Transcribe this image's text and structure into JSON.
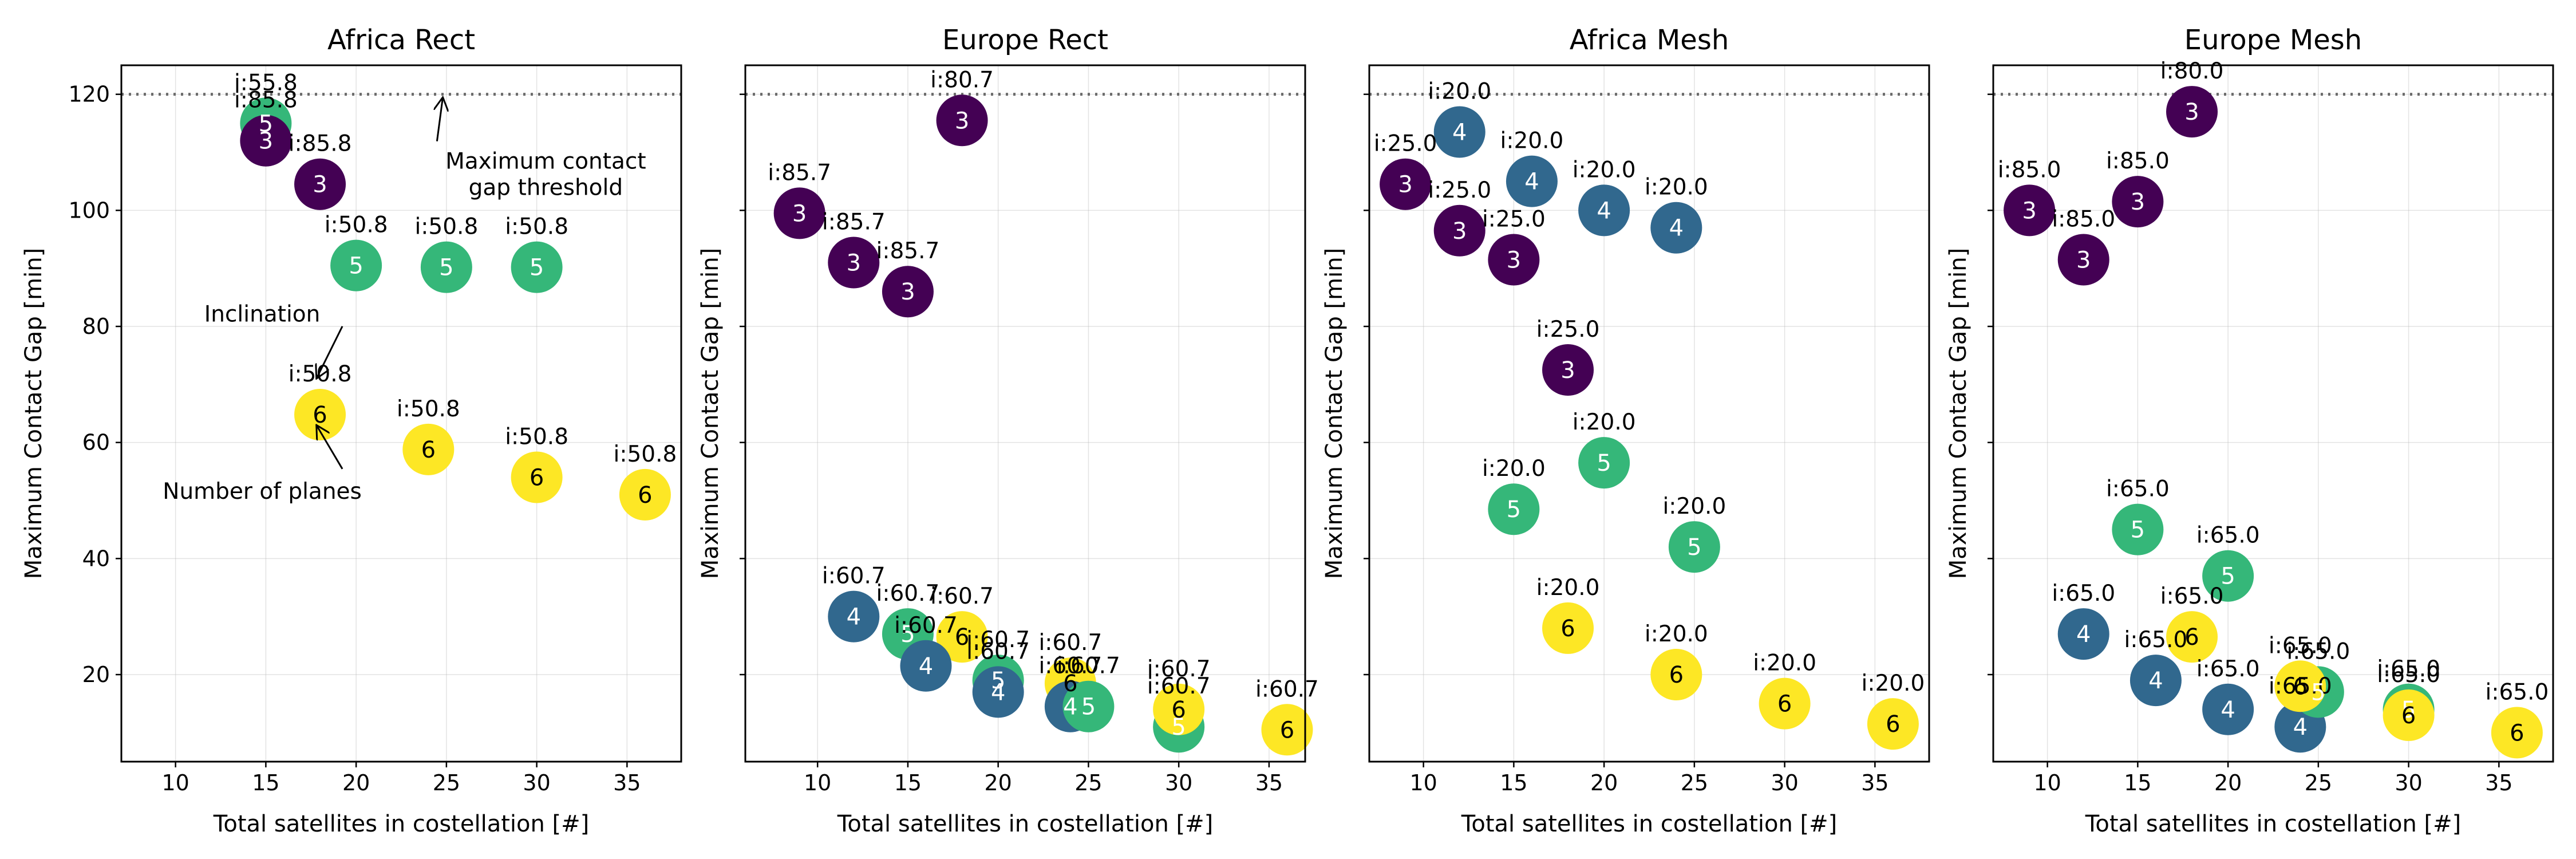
{
  "chart_data": [
    {
      "type": "scatter",
      "title": "Africa Rect",
      "xlabel": "Total satellites in costellation [#]",
      "ylabel": "Maximum Contact Gap [min]",
      "xlim": [
        7,
        38
      ],
      "ylim": [
        5,
        125
      ],
      "xticks": [
        10,
        15,
        20,
        25,
        30,
        35
      ],
      "yticks": [
        20,
        40,
        60,
        80,
        100,
        120
      ],
      "show_yticklabels": true,
      "grid": true,
      "threshold": 120,
      "points": [
        {
          "x": 15,
          "y": 115,
          "planes": 5,
          "label": "i:55.8"
        },
        {
          "x": 15,
          "y": 112,
          "planes": 3,
          "label": "i:85.8"
        },
        {
          "x": 18,
          "y": 104.5,
          "planes": 3,
          "label": "i:85.8"
        },
        {
          "x": 20,
          "y": 90.5,
          "planes": 5,
          "label": "i:50.8"
        },
        {
          "x": 25,
          "y": 90.2,
          "planes": 5,
          "label": "i:50.8"
        },
        {
          "x": 30,
          "y": 90.2,
          "planes": 5,
          "label": "i:50.8"
        },
        {
          "x": 18,
          "y": 64.8,
          "planes": 6,
          "label": "i:50.8"
        },
        {
          "x": 24,
          "y": 58.8,
          "planes": 6,
          "label": "i:50.8"
        },
        {
          "x": 30,
          "y": 54,
          "planes": 6,
          "label": "i:50.8"
        },
        {
          "x": 36,
          "y": 51,
          "planes": 6,
          "label": "i:50.8"
        }
      ],
      "annotations": [
        {
          "text": "Maximum contact\ngap threshold",
          "text_x": 30.5,
          "text_y": 105,
          "target_x": 24.8,
          "target_y": 119.5
        },
        {
          "text": "Inclination",
          "text_x": 14.8,
          "text_y": 82,
          "target_x": 17.8,
          "target_y": 71
        },
        {
          "text": "Number of planes",
          "text_x": 14.8,
          "text_y": 51.5,
          "target_x": 17.8,
          "target_y": 63
        }
      ]
    },
    {
      "type": "scatter",
      "title": "Europe Rect",
      "xlabel": "Total satellites in costellation [#]",
      "ylabel": "Maximum Contact Gap [min]",
      "xlim": [
        6,
        37
      ],
      "ylim": [
        5,
        125
      ],
      "xticks": [
        10,
        15,
        20,
        25,
        30,
        35
      ],
      "yticks": [
        20,
        40,
        60,
        80,
        100,
        120
      ],
      "show_yticklabels": false,
      "grid": true,
      "threshold": 120,
      "points": [
        {
          "x": 18,
          "y": 115.5,
          "planes": 3,
          "label": "i:80.7"
        },
        {
          "x": 9,
          "y": 99.5,
          "planes": 3,
          "label": "i:85.7"
        },
        {
          "x": 12,
          "y": 91,
          "planes": 3,
          "label": "i:85.7"
        },
        {
          "x": 15,
          "y": 86,
          "planes": 3,
          "label": "i:85.7"
        },
        {
          "x": 12,
          "y": 30,
          "planes": 4,
          "label": "i:60.7"
        },
        {
          "x": 15,
          "y": 27,
          "planes": 5,
          "label": "i:60.7"
        },
        {
          "x": 18,
          "y": 26.5,
          "planes": 6,
          "label": "i:60.7"
        },
        {
          "x": 16,
          "y": 21.5,
          "planes": 4,
          "label": "i:60.7"
        },
        {
          "x": 20,
          "y": 19,
          "planes": 5,
          "label": "i:60.7"
        },
        {
          "x": 20,
          "y": 17,
          "planes": 4,
          "label": "i:60.7"
        },
        {
          "x": 24,
          "y": 18.5,
          "planes": 6,
          "label": "i:60.7"
        },
        {
          "x": 24,
          "y": 14.5,
          "planes": 4,
          "label": "i:60.7"
        },
        {
          "x": 25,
          "y": 14.5,
          "planes": 5,
          "label": "i:60.7"
        },
        {
          "x": 30,
          "y": 11,
          "planes": 5,
          "label": "i:60.7"
        },
        {
          "x": 30,
          "y": 14,
          "planes": 6,
          "label": "i:60.7"
        },
        {
          "x": 36,
          "y": 10.5,
          "planes": 6,
          "label": "i:60.7"
        }
      ]
    },
    {
      "type": "scatter",
      "title": "Africa Mesh",
      "xlabel": "Total satellites in costellation [#]",
      "ylabel": "Maximum Contact Gap [min]",
      "xlim": [
        7,
        38
      ],
      "ylim": [
        5,
        125
      ],
      "xticks": [
        10,
        15,
        20,
        25,
        30,
        35
      ],
      "yticks": [
        20,
        40,
        60,
        80,
        100,
        120
      ],
      "show_yticklabels": false,
      "grid": true,
      "threshold": 120,
      "points": [
        {
          "x": 12,
          "y": 113.5,
          "planes": 4,
          "label": "i:20.0"
        },
        {
          "x": 9,
          "y": 104.5,
          "planes": 3,
          "label": "i:25.0"
        },
        {
          "x": 16,
          "y": 105,
          "planes": 4,
          "label": "i:20.0"
        },
        {
          "x": 20,
          "y": 100,
          "planes": 4,
          "label": "i:20.0"
        },
        {
          "x": 24,
          "y": 97,
          "planes": 4,
          "label": "i:20.0"
        },
        {
          "x": 12,
          "y": 96.5,
          "planes": 3,
          "label": "i:25.0"
        },
        {
          "x": 15,
          "y": 91.5,
          "planes": 3,
          "label": "i:25.0"
        },
        {
          "x": 18,
          "y": 72.5,
          "planes": 3,
          "label": "i:25.0"
        },
        {
          "x": 20,
          "y": 56.5,
          "planes": 5,
          "label": "i:20.0"
        },
        {
          "x": 15,
          "y": 48.5,
          "planes": 5,
          "label": "i:20.0"
        },
        {
          "x": 25,
          "y": 42,
          "planes": 5,
          "label": "i:20.0"
        },
        {
          "x": 18,
          "y": 28,
          "planes": 6,
          "label": "i:20.0"
        },
        {
          "x": 24,
          "y": 20,
          "planes": 6,
          "label": "i:20.0"
        },
        {
          "x": 30,
          "y": 15,
          "planes": 6,
          "label": "i:20.0"
        },
        {
          "x": 36,
          "y": 11.5,
          "planes": 6,
          "label": "i:20.0"
        }
      ]
    },
    {
      "type": "scatter",
      "title": "Europe Mesh",
      "xlabel": "Total satellites in costellation [#]",
      "ylabel": "Maximum Contact Gap [min]",
      "xlim": [
        7,
        38
      ],
      "ylim": [
        5,
        125
      ],
      "xticks": [
        10,
        15,
        20,
        25,
        30,
        35
      ],
      "yticks": [
        20,
        40,
        60,
        80,
        100,
        120
      ],
      "show_yticklabels": false,
      "grid": true,
      "threshold": 120,
      "points": [
        {
          "x": 18,
          "y": 117,
          "planes": 3,
          "label": "i:80.0"
        },
        {
          "x": 9,
          "y": 100,
          "planes": 3,
          "label": "i:85.0"
        },
        {
          "x": 15,
          "y": 101.5,
          "planes": 3,
          "label": "i:85.0"
        },
        {
          "x": 12,
          "y": 91.5,
          "planes": 3,
          "label": "i:85.0"
        },
        {
          "x": 15,
          "y": 45,
          "planes": 5,
          "label": "i:65.0"
        },
        {
          "x": 20,
          "y": 37,
          "planes": 5,
          "label": "i:65.0"
        },
        {
          "x": 12,
          "y": 27,
          "planes": 4,
          "label": "i:65.0"
        },
        {
          "x": 18,
          "y": 26.5,
          "planes": 6,
          "label": "i:65.0"
        },
        {
          "x": 16,
          "y": 19,
          "planes": 4,
          "label": "i:65.0"
        },
        {
          "x": 20,
          "y": 14,
          "planes": 4,
          "label": "i:65.0"
        },
        {
          "x": 24,
          "y": 11,
          "planes": 4,
          "label": "i:65.0"
        },
        {
          "x": 25,
          "y": 17,
          "planes": 5,
          "label": "i:65.0"
        },
        {
          "x": 24,
          "y": 18,
          "planes": 6,
          "label": "i:65.0"
        },
        {
          "x": 30,
          "y": 14,
          "planes": 5,
          "label": "i:65.0"
        },
        {
          "x": 30,
          "y": 13,
          "planes": 6,
          "label": "i:65.0"
        },
        {
          "x": 36,
          "y": 10,
          "planes": 6,
          "label": "i:65.0"
        }
      ]
    }
  ],
  "colors": {
    "planes_3": "#440154",
    "planes_4": "#31688e",
    "planes_5": "#35b779",
    "planes_6": "#fde725",
    "threshold": "#6b6b6b"
  }
}
